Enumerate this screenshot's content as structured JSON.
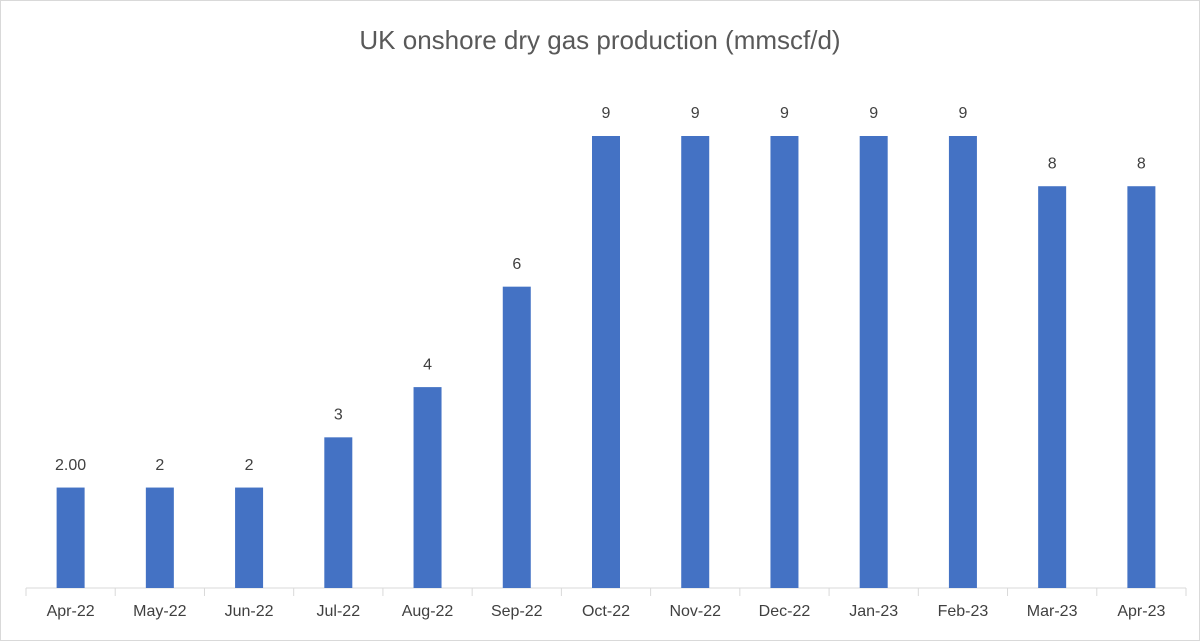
{
  "chart_data": {
    "type": "bar",
    "title": "UK onshore dry gas production (mmscf/d)",
    "categories": [
      "Apr-22",
      "May-22",
      "Jun-22",
      "Jul-22",
      "Aug-22",
      "Sep-22",
      "Oct-22",
      "Nov-22",
      "Dec-22",
      "Jan-23",
      "Feb-23",
      "Mar-23",
      "Apr-23"
    ],
    "values": [
      2,
      2,
      2,
      3,
      4,
      6,
      9,
      9,
      9,
      9,
      9,
      8,
      8
    ],
    "value_labels": [
      "2.00",
      "2",
      "2",
      "3",
      "4",
      "6",
      "9",
      "9",
      "9",
      "9",
      "9",
      "8",
      "8"
    ],
    "color": "#4472c4"
  }
}
